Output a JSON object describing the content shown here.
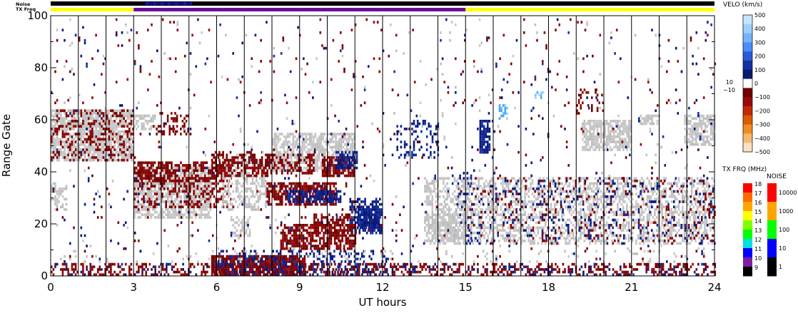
{
  "chart_data": {
    "type": "heatmap",
    "xlabel": "UT hours",
    "ylabel": "Range Gate",
    "xlim": [
      0,
      24
    ],
    "ylim": [
      0,
      100
    ],
    "x_ticks": [
      "0",
      "3",
      "6",
      "9",
      "12",
      "15",
      "18",
      "21",
      "24"
    ],
    "y_ticks": [
      "0",
      "20",
      "40",
      "60",
      "80",
      "100"
    ],
    "vertical_gridlines_hours": [
      1,
      2,
      3,
      4,
      5,
      6,
      7,
      8,
      9,
      10,
      11,
      12,
      13,
      14,
      15,
      16,
      17,
      18,
      19,
      20,
      21,
      22,
      23
    ],
    "top_strips": {
      "noise_label": "Noise",
      "txfreq_label": "TX Freq",
      "txfreq_segments": [
        {
          "from": 0,
          "to": 3,
          "color": "#ffff00"
        },
        {
          "from": 3,
          "to": 15,
          "color": "#6a0d9a"
        },
        {
          "from": 15,
          "to": 24,
          "color": "#ffff00"
        }
      ],
      "noise_blue_span": [
        3.4,
        5.1
      ]
    },
    "velocity_colorbar": {
      "title": "VELO (km/s)",
      "ticks": [
        "500",
        "400",
        "300",
        "200",
        "100",
        "0",
        "−100",
        "−200",
        "−300",
        "−400",
        "−500"
      ],
      "side_labels": [
        "10",
        "−10"
      ],
      "colors": [
        "#c6e6ff",
        "#9ed0ff",
        "#74b4ff",
        "#4b8cff",
        "#2a5bd6",
        "#1632a0",
        "#0a1a70",
        "#ffffff",
        "#6e0000",
        "#9a0a0a",
        "#c22a00",
        "#dc5a00",
        "#f08c20",
        "#f7b870",
        "#fce0c0"
      ]
    },
    "txfreq_colorbar": {
      "title": "TX FRQ (MHz)",
      "ticks": [
        "18",
        "17",
        "16",
        "15",
        "14",
        "13",
        "12",
        "11",
        "10",
        "9"
      ],
      "colors": [
        "#ff0000",
        "#ff6a00",
        "#ffa500",
        "#ffff00",
        "#7fff00",
        "#00ff00",
        "#00e0e0",
        "#0000ff",
        "#7b1fa2",
        "#000000"
      ]
    },
    "noise_colorbar": {
      "title": "NOISE",
      "ticks": [
        "10000",
        "1000",
        "100",
        "10",
        "1"
      ],
      "colors": [
        "#ff0000",
        "#ffa500",
        "#00ff00",
        "#0000ff",
        "#000000"
      ]
    },
    "regions": [
      {
        "type": "gray",
        "x": [
          0,
          3
        ],
        "y": [
          44,
          64
        ],
        "density": 0.8
      },
      {
        "type": "red",
        "x": [
          0,
          3
        ],
        "y": [
          44,
          64
        ],
        "density": 0.25
      },
      {
        "type": "gray",
        "x": [
          0,
          0.6
        ],
        "y": [
          25,
          36
        ],
        "density": 0.5
      },
      {
        "type": "gray",
        "x": [
          3,
          5.8
        ],
        "y": [
          22,
          42
        ],
        "density": 0.75
      },
      {
        "type": "red",
        "x": [
          3,
          6.5
        ],
        "y": [
          36,
          44
        ],
        "density": 0.6
      },
      {
        "type": "red",
        "x": [
          3,
          6.5
        ],
        "y": [
          26,
          38
        ],
        "density": 0.3
      },
      {
        "type": "gray",
        "x": [
          3,
          3.8
        ],
        "y": [
          56,
          62
        ],
        "density": 0.5
      },
      {
        "type": "red",
        "x": [
          3.8,
          5
        ],
        "y": [
          54,
          63
        ],
        "density": 0.3
      },
      {
        "type": "gray",
        "x": [
          6.2,
          7.8
        ],
        "y": [
          25,
          45
        ],
        "density": 0.5
      },
      {
        "type": "red",
        "x": [
          5.8,
          8
        ],
        "y": [
          38,
          48
        ],
        "density": 0.5
      },
      {
        "type": "gray",
        "x": [
          8,
          11
        ],
        "y": [
          40,
          55
        ],
        "density": 0.7
      },
      {
        "type": "red",
        "x": [
          7.8,
          9.5
        ],
        "y": [
          39,
          47
        ],
        "density": 0.45
      },
      {
        "type": "red",
        "x": [
          9.8,
          11
        ],
        "y": [
          38,
          46
        ],
        "density": 0.7
      },
      {
        "type": "blue",
        "x": [
          10.3,
          11.1
        ],
        "y": [
          41,
          48
        ],
        "density": 0.7
      },
      {
        "type": "red",
        "x": [
          7.8,
          10.3
        ],
        "y": [
          27,
          36
        ],
        "density": 0.7
      },
      {
        "type": "blue",
        "x": [
          8.5,
          10.5
        ],
        "y": [
          28,
          33
        ],
        "density": 0.7
      },
      {
        "type": "blue",
        "x": [
          10.8,
          12
        ],
        "y": [
          16,
          30
        ],
        "density": 0.55
      },
      {
        "type": "blue",
        "x": [
          11.1,
          11.9
        ],
        "y": [
          18,
          26
        ],
        "density": 0.9
      },
      {
        "type": "red",
        "x": [
          8.3,
          11
        ],
        "y": [
          10,
          20
        ],
        "density": 0.7
      },
      {
        "type": "red",
        "x": [
          9.5,
          10.8
        ],
        "y": [
          19,
          24
        ],
        "density": 0.6
      },
      {
        "type": "red",
        "x": [
          5.8,
          9.2
        ],
        "y": [
          0,
          8
        ],
        "density": 0.8
      },
      {
        "type": "blue",
        "x": [
          6,
          12.2
        ],
        "y": [
          0,
          10
        ],
        "density": 0.25
      },
      {
        "type": "gray",
        "x": [
          6.5,
          7.2
        ],
        "y": [
          15,
          23
        ],
        "density": 0.5
      },
      {
        "type": "blue",
        "x": [
          12.5,
          14
        ],
        "y": [
          45,
          60
        ],
        "density": 0.25
      },
      {
        "type": "blue",
        "x": [
          15.5,
          15.9
        ],
        "y": [
          47,
          60
        ],
        "density": 0.8
      },
      {
        "type": "blue",
        "x": [
          14.5,
          15.2
        ],
        "y": [
          12,
          40
        ],
        "density": 0.2
      },
      {
        "type": "gray",
        "x": [
          13.5,
          24
        ],
        "y": [
          12,
          38
        ],
        "density": 0.45
      },
      {
        "type": "gray",
        "x": [
          13.5,
          15
        ],
        "y": [
          13,
          24
        ],
        "density": 0.6
      },
      {
        "type": "blue",
        "x": [
          15,
          24
        ],
        "y": [
          12,
          38
        ],
        "density": 0.08
      },
      {
        "type": "red",
        "x": [
          15,
          24
        ],
        "y": [
          12,
          38
        ],
        "density": 0.07
      },
      {
        "type": "gray",
        "x": [
          19.2,
          21
        ],
        "y": [
          48,
          60
        ],
        "density": 0.75
      },
      {
        "type": "gray",
        "x": [
          21.3,
          22
        ],
        "y": [
          58,
          62
        ],
        "density": 0.6
      },
      {
        "type": "gray",
        "x": [
          22.9,
          24
        ],
        "y": [
          50,
          62
        ],
        "density": 0.7
      },
      {
        "type": "red",
        "x": [
          19,
          20
        ],
        "y": [
          62,
          72
        ],
        "density": 0.2
      },
      {
        "type": "light",
        "x": [
          16.2,
          16.5
        ],
        "y": [
          60,
          66
        ],
        "density": 0.6
      },
      {
        "type": "light",
        "x": [
          17.5,
          17.8
        ],
        "y": [
          68,
          71
        ],
        "density": 0.6
      },
      {
        "type": "red",
        "x": [
          0,
          24
        ],
        "y": [
          0,
          5
        ],
        "density": 0.35
      },
      {
        "type": "blue",
        "x": [
          0,
          24
        ],
        "y": [
          0,
          5
        ],
        "density": 0.1
      },
      {
        "type": "gray",
        "x": [
          0,
          24
        ],
        "y": [
          5,
          10
        ],
        "density": 0.05
      },
      {
        "type": "red",
        "x": [
          0,
          24
        ],
        "y": [
          5,
          99
        ],
        "density": 0.012
      },
      {
        "type": "blue",
        "x": [
          0,
          24
        ],
        "y": [
          5,
          99
        ],
        "density": 0.01
      },
      {
        "type": "gray",
        "x": [
          0,
          24
        ],
        "y": [
          5,
          99
        ],
        "density": 0.008
      }
    ]
  }
}
